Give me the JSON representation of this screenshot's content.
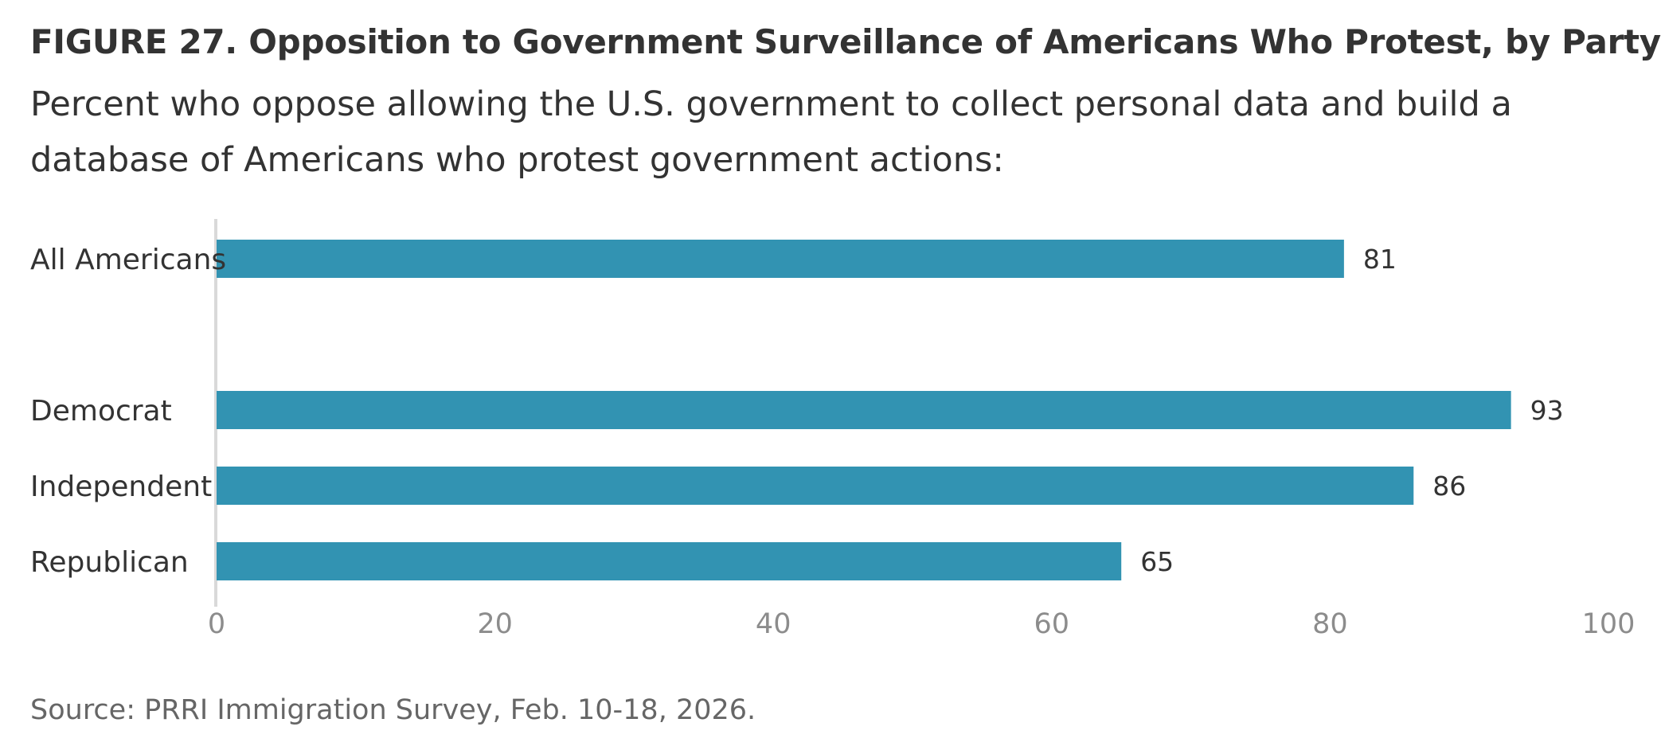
{
  "figure": {
    "title": "FIGURE 27.  Opposition to Government Surveillance of Americans Who Protest, by Party",
    "subtitle": "Percent who oppose allowing the U.S. government to collect personal data and build a database of Americans who protest government actions:",
    "source": "Source: PRRI Immigration Survey, Feb. 10-18, 2026."
  },
  "chart_data": {
    "type": "bar",
    "orientation": "horizontal",
    "categories": [
      "All Americans",
      "Democrat",
      "Independent",
      "Republican"
    ],
    "values": [
      81,
      93,
      86,
      65
    ],
    "xlim": [
      0,
      100
    ],
    "xticks": [
      "0",
      "20",
      "40",
      "60",
      "80",
      "100"
    ],
    "grid": false,
    "bar_color": "#3293B2",
    "axis_color": "#d9d9d9",
    "tick_label_color": "#8c8c8c"
  }
}
